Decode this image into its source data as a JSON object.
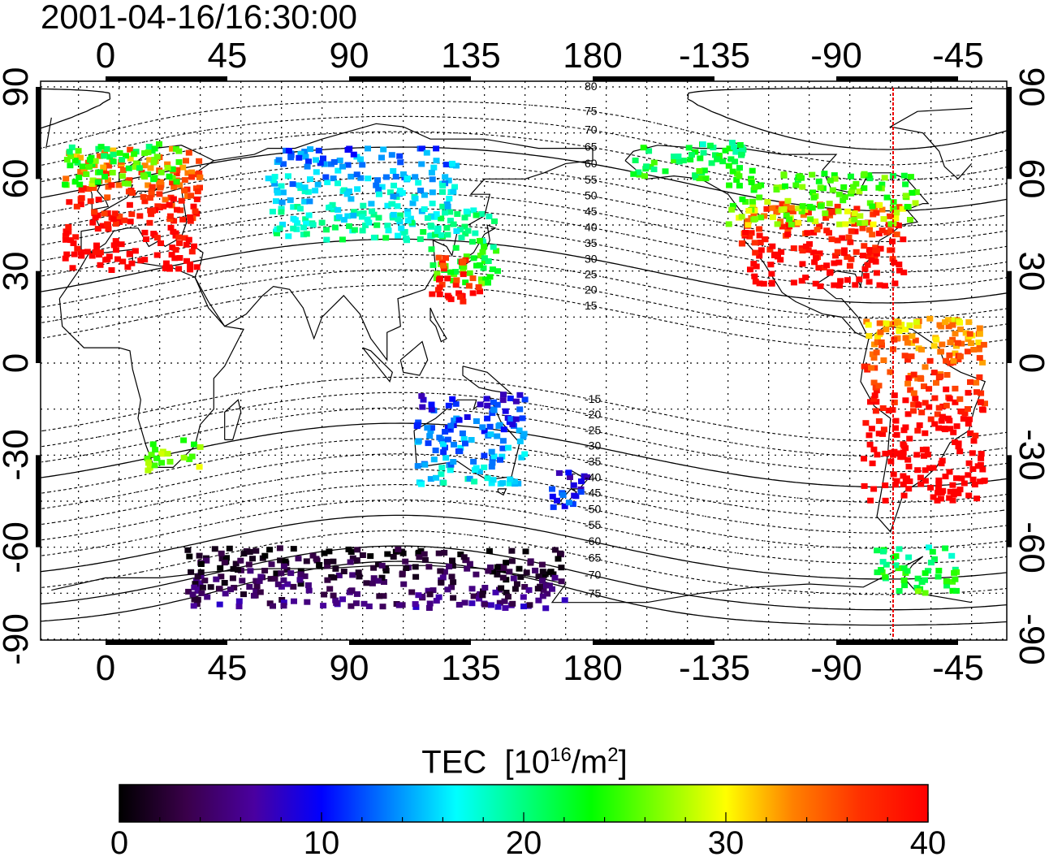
{
  "timestamp": "2001-04-16/16:30:00",
  "map": {
    "lon_ticks": [
      "0",
      "45",
      "90",
      "135",
      "180",
      "-135",
      "-90",
      "-45"
    ],
    "lat_ticks": [
      "90",
      "60",
      "30",
      "0",
      "-30",
      "-60",
      "-90"
    ],
    "terminator_lon": -69,
    "magnetic_lat_labels_north": [
      "80",
      "75",
      "70",
      "65",
      "60",
      "55",
      "50",
      "45",
      "40",
      "35",
      "30",
      "25",
      "20",
      "15"
    ],
    "magnetic_lat_labels_south": [
      "-15",
      "-20",
      "-25",
      "-30",
      "-35",
      "-40",
      "-45",
      "-50",
      "-55",
      "-60",
      "-65",
      "-70",
      "-75"
    ]
  },
  "colorbar": {
    "title": "TEC",
    "unit_prefix": "[10",
    "unit_exp": "16",
    "unit_mid": "/m",
    "unit_exp2": "2",
    "unit_suffix": "]",
    "ticks": [
      "0",
      "10",
      "20",
      "30",
      "40"
    ],
    "min": 0,
    "max": 40,
    "colors": [
      "#000000",
      "#3a004a",
      "#4a00a0",
      "#0000ff",
      "#0080ff",
      "#00ffff",
      "#00ff80",
      "#00ff00",
      "#80ff00",
      "#ffff00",
      "#ff8000",
      "#ff3000",
      "#ff0000"
    ]
  },
  "tec_regions": [
    {
      "name": "europe",
      "lon": [
        -15,
        35
      ],
      "lat": [
        30,
        70
      ],
      "tec": 38
    },
    {
      "name": "europe-north",
      "lon": [
        -15,
        30
      ],
      "lat": [
        58,
        72
      ],
      "tec": 24
    },
    {
      "name": "eastern-us",
      "lon": [
        -125,
        -65
      ],
      "lat": [
        25,
        52
      ],
      "tec": 39
    },
    {
      "name": "north-america-north",
      "lon": [
        -130,
        -60
      ],
      "lat": [
        45,
        62
      ],
      "tec": 26
    },
    {
      "name": "canada-alaska",
      "lon": [
        -165,
        -120
      ],
      "lat": [
        60,
        72
      ],
      "tec": 22
    },
    {
      "name": "south-america",
      "lon": [
        -80,
        -35
      ],
      "lat": [
        -45,
        15
      ],
      "tec": 39
    },
    {
      "name": "japan",
      "lon": [
        120,
        145
      ],
      "lat": [
        25,
        50
      ],
      "tec": 22
    },
    {
      "name": "east-asia-south",
      "lon": [
        120,
        140
      ],
      "lat": [
        20,
        35
      ],
      "tec": 38
    },
    {
      "name": "siberia",
      "lon": [
        60,
        130
      ],
      "lat": [
        40,
        70
      ],
      "tec": 16
    },
    {
      "name": "australia",
      "lon": [
        115,
        155
      ],
      "lat": [
        -40,
        -10
      ],
      "tec": 13
    },
    {
      "name": "new-zealand",
      "lon": [
        165,
        180
      ],
      "lat": [
        -47,
        -35
      ],
      "tec": 10
    },
    {
      "name": "southern-ocean",
      "lon": [
        30,
        170
      ],
      "lat": [
        -80,
        -60
      ],
      "tec": 3
    },
    {
      "name": "south-africa",
      "lon": [
        15,
        35
      ],
      "lat": [
        -35,
        -25
      ],
      "tec": 26
    },
    {
      "name": "antarctic-peninsula",
      "lon": [
        -75,
        -45
      ],
      "lat": [
        -75,
        -60
      ],
      "tec": 22
    }
  ]
}
